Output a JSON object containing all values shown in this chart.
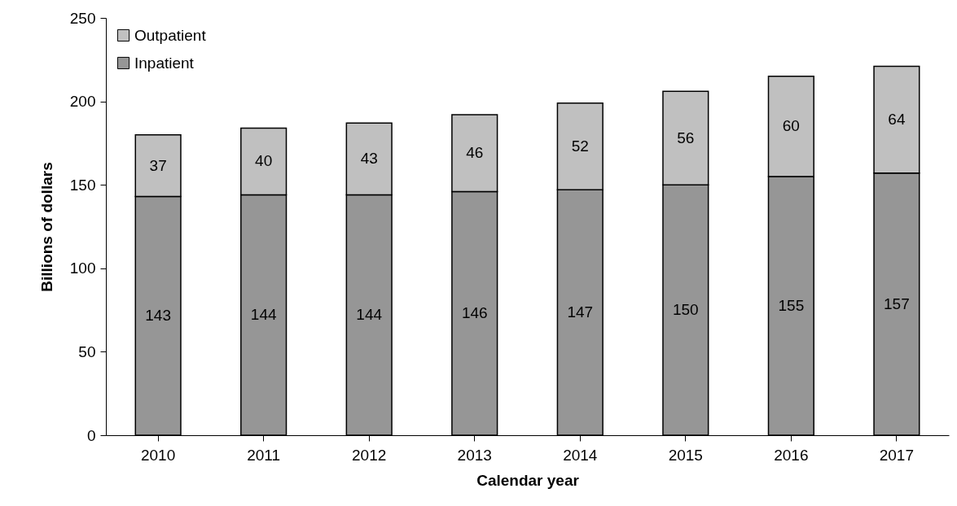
{
  "chart_data": {
    "type": "bar",
    "stacked": true,
    "xlabel": "Calendar year",
    "ylabel": "Billions of dollars",
    "categories": [
      "2010",
      "2011",
      "2012",
      "2013",
      "2014",
      "2015",
      "2016",
      "2017"
    ],
    "series": [
      {
        "name": "Inpatient",
        "color": "#969696",
        "values": [
          143,
          144,
          144,
          146,
          147,
          150,
          155,
          157
        ]
      },
      {
        "name": "Outpatient",
        "color": "#c0c0c0",
        "values": [
          37,
          40,
          43,
          46,
          52,
          56,
          60,
          64
        ]
      }
    ],
    "ylim": [
      0,
      250
    ],
    "yticks": [
      0,
      50,
      100,
      150,
      200,
      250
    ],
    "data_labels": true,
    "legend": "top left",
    "grid": false
  }
}
